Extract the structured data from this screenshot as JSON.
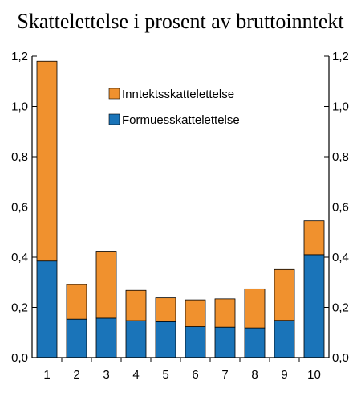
{
  "chart_data": {
    "type": "bar",
    "stacked": true,
    "title": "Skattelettelse i prosent av bruttoinntekt",
    "categories": [
      "1",
      "2",
      "3",
      "4",
      "5",
      "6",
      "7",
      "8",
      "9",
      "10"
    ],
    "series": [
      {
        "name": "Formuesskattelettelse",
        "color": "#1a74b9",
        "values": [
          0.385,
          0.153,
          0.157,
          0.147,
          0.143,
          0.123,
          0.121,
          0.118,
          0.148,
          0.41
        ]
      },
      {
        "name": "Inntektsskattelettelse",
        "color": "#f0912e",
        "values": [
          0.795,
          0.138,
          0.267,
          0.121,
          0.095,
          0.107,
          0.113,
          0.156,
          0.203,
          0.135
        ]
      }
    ],
    "ylim": [
      0,
      1.2
    ],
    "yticks": [
      "0,0",
      "0,2",
      "0,4",
      "0,6",
      "0,8",
      "1,0",
      "1,2"
    ],
    "ytick_values": [
      0,
      0.2,
      0.4,
      0.6,
      0.8,
      1.0,
      1.2
    ],
    "legend": [
      {
        "label": "Inntektsskattelettelse",
        "color": "#f0912e"
      },
      {
        "label": "Formuesskattelettelse",
        "color": "#1a74b9"
      }
    ],
    "legend_position": "top-right",
    "grid": false
  }
}
